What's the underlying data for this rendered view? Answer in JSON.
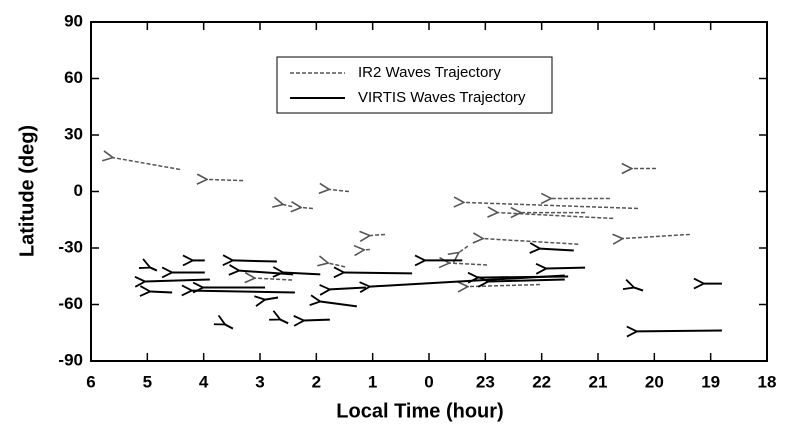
{
  "chart_data": {
    "type": "trajectory",
    "xlabel": "Local Time (hour)",
    "ylabel": "Latitude (deg)",
    "xlim": [
      6,
      -6
    ],
    "ylim": [
      -90,
      90
    ],
    "xticks": [
      6,
      5,
      4,
      3,
      2,
      1,
      0,
      {
        "value": -1,
        "label": "23"
      },
      {
        "value": -2,
        "label": "22"
      },
      {
        "value": -3,
        "label": "21"
      },
      {
        "value": -4,
        "label": "20"
      },
      {
        "value": -5,
        "label": "19"
      },
      {
        "value": -6,
        "label": "18"
      }
    ],
    "yticks": [
      90,
      60,
      30,
      0,
      -30,
      -60,
      -90
    ],
    "legend": "top-center",
    "series": [
      {
        "name": "IR2 Waves Trajectory",
        "dash": true,
        "color": "#555555",
        "x_start": [
          4.42,
          3.3,
          2.43,
          2.06,
          1.42,
          0.78,
          1.05,
          1.49,
          2.43,
          -1.03,
          -0.69,
          -2.65,
          -3.71,
          -3.27,
          -2.77,
          -3.21,
          -4.63,
          -4.03,
          -1.97
        ],
        "y_start": [
          11.7,
          5.8,
          -8,
          -9,
          0,
          -22.8,
          -30.8,
          -40,
          -47,
          -39,
          -29,
          -28,
          -9,
          -14.3,
          -11.2,
          -3.7,
          -22.8,
          12.2,
          -49.4
        ],
        "x_end": [
          5.61,
          3.94,
          2.59,
          2.27,
          1.77,
          1.05,
          1.15,
          1.79,
          3.09,
          -0.36,
          -0.53,
          -0.96,
          -0.62,
          -1.22,
          -1.63,
          -2.17,
          -3.44,
          -3.6,
          -0.69
        ],
        "y_end": [
          18,
          6.4,
          -6.9,
          -8.5,
          1.1,
          -23.4,
          -31,
          -38,
          -46,
          -38,
          -32.4,
          -25,
          -5.8,
          -11.2,
          -11.2,
          -3.7,
          -25,
          12.2,
          -50.5
        ]
      },
      {
        "name": "VIRTIS Waves Trajectory",
        "dash": false,
        "color": "#000000",
        "x_start": [
          3.89,
          4.56,
          4.83,
          3.98,
          3.98,
          2.38,
          2.91,
          2.7,
          2.41,
          2.68,
          1.93,
          3.48,
          2.5,
          1.76,
          1.28,
          1.12,
          0.3,
          -2.41,
          -0.59,
          -2.47,
          -2.41,
          -2.57,
          -2.77,
          -5.2,
          -5.2,
          -3.8
        ],
        "y_start": [
          -46.7,
          -53.6,
          -42,
          -43,
          -36.6,
          -53.6,
          -51,
          -37.2,
          -44,
          -56.3,
          -44,
          -72.8,
          -70,
          -68,
          -61,
          -51,
          -43.5,
          -44.6,
          -36.6,
          -45.1,
          -46.7,
          -31.3,
          -40.4,
          -73.8,
          -48.9,
          -52.6
        ],
        "x_end": [
          5.04,
          4.95,
          4.95,
          4.56,
          4.19,
          4.21,
          4.01,
          3.48,
          3.37,
          2.91,
          2.59,
          3.62,
          2.64,
          2.22,
          1.93,
          1.76,
          1.51,
          1.05,
          0.07,
          -0.87,
          -1.05,
          -1.97,
          -2.08,
          -3.69,
          -4.88,
          -3.64
        ],
        "y_end": [
          -47.8,
          -53.1,
          -40.4,
          -43,
          -36.6,
          -52.6,
          -51,
          -36.6,
          -42,
          -57.4,
          -43,
          -70.6,
          -68,
          -68.5,
          -58.4,
          -52,
          -43,
          -50.5,
          -36.6,
          -45.7,
          -47.8,
          -30.3,
          -40.9,
          -74.3,
          -48.9,
          -51
        ]
      }
    ]
  }
}
